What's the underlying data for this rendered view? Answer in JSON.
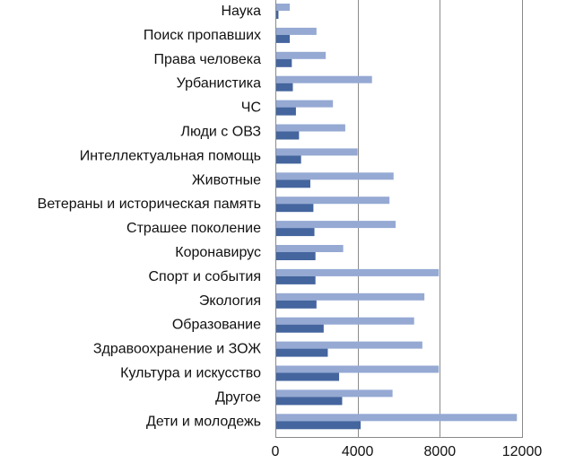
{
  "chart_data": {
    "type": "bar",
    "orientation": "horizontal",
    "categories": [
      "Наука",
      "Поиск пропавших",
      "Права человека",
      "Урбанистика",
      "ЧС",
      "Люди с ОВЗ",
      "Интеллектуальная помощь",
      "Животные",
      "Ветераны и историческая память",
      "Страшее поколение",
      "Коронавирус",
      "Спорт и события",
      "Экология",
      "Образование",
      "Здравоохранение и ЗОЖ",
      "Культура и искусство",
      "Другое",
      "Дети и молодежь"
    ],
    "series": [
      {
        "color": "#95a9d3",
        "values": [
          700,
          2000,
          2450,
          4700,
          2800,
          3400,
          4000,
          5750,
          5550,
          5850,
          3300,
          7950,
          7250,
          6750,
          7150,
          7950,
          5700,
          11750
        ]
      },
      {
        "color": "#44659e",
        "values": [
          150,
          700,
          800,
          850,
          1000,
          1150,
          1250,
          1700,
          1850,
          1900,
          1950,
          1950,
          2000,
          2350,
          2550,
          3100,
          3250,
          4150
        ]
      }
    ],
    "xlim": [
      0,
      12000
    ],
    "xticks": [
      "0",
      "4000",
      "8000",
      "12000"
    ],
    "tick_values": [
      0,
      4000,
      8000,
      12000
    ],
    "grid": true,
    "legend": "none",
    "title": "",
    "xlabel": "",
    "ylabel": ""
  }
}
